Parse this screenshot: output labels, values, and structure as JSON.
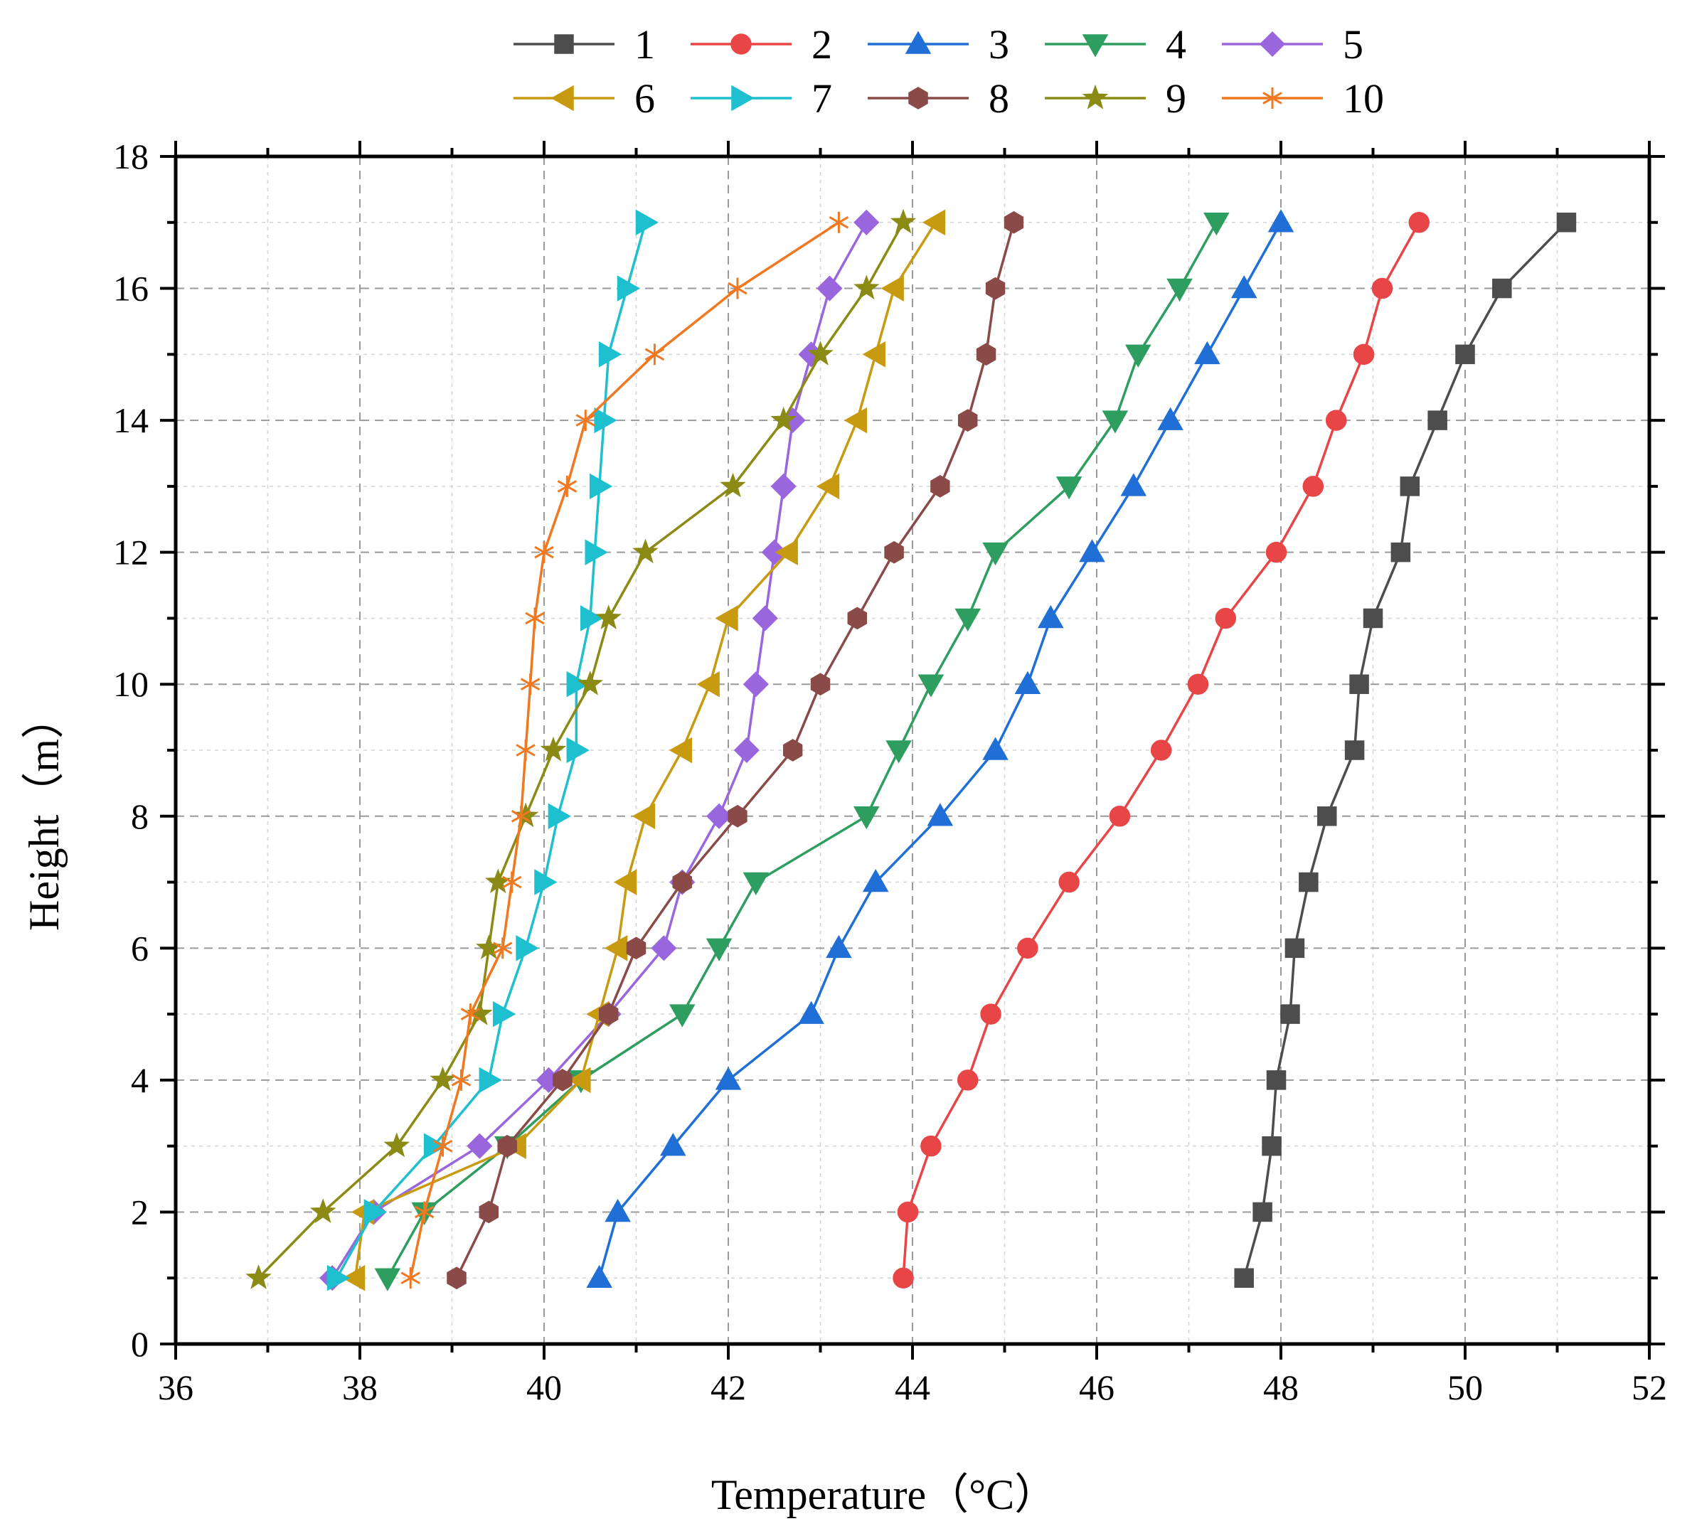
{
  "chart_data": {
    "type": "line",
    "title": "",
    "xlabel": "Temperature（°C）",
    "ylabel": "Height（m）",
    "xlim": [
      36,
      52
    ],
    "ylim": [
      0,
      18
    ],
    "x_ticks": [
      36,
      38,
      40,
      42,
      44,
      46,
      48,
      50,
      52
    ],
    "y_ticks": [
      0,
      2,
      4,
      6,
      8,
      10,
      12,
      14,
      16,
      18
    ],
    "grid": true,
    "legend_position": "top",
    "heights": [
      1,
      2,
      3,
      4,
      5,
      6,
      7,
      8,
      9,
      10,
      11,
      12,
      13,
      14,
      15,
      16,
      17
    ],
    "series": [
      {
        "name": "1",
        "color": "#4d4d4d",
        "marker": "square",
        "values": [
          47.6,
          47.8,
          47.9,
          47.95,
          48.1,
          48.15,
          48.3,
          48.5,
          48.8,
          48.85,
          49.0,
          49.3,
          49.4,
          49.7,
          50.0,
          50.4,
          51.1
        ]
      },
      {
        "name": "2",
        "color": "#e84646",
        "marker": "circle",
        "values": [
          43.9,
          43.95,
          44.2,
          44.6,
          44.85,
          45.25,
          45.7,
          46.25,
          46.7,
          47.1,
          47.4,
          47.95,
          48.35,
          48.6,
          48.9,
          49.1,
          49.5
        ]
      },
      {
        "name": "3",
        "color": "#1f6fd6",
        "marker": "triangle-up",
        "values": [
          40.6,
          40.8,
          41.4,
          42.0,
          42.9,
          43.2,
          43.6,
          44.3,
          44.9,
          45.25,
          45.5,
          45.95,
          46.4,
          46.8,
          47.2,
          47.6,
          48.0
        ]
      },
      {
        "name": "4",
        "color": "#2e9e60",
        "marker": "triangle-down",
        "values": [
          38.3,
          38.7,
          39.6,
          40.4,
          41.5,
          41.9,
          42.3,
          43.5,
          43.85,
          44.2,
          44.6,
          44.9,
          45.7,
          46.2,
          46.45,
          46.9,
          47.3
        ]
      },
      {
        "name": "5",
        "color": "#9966dd",
        "marker": "diamond",
        "values": [
          37.7,
          38.15,
          39.3,
          40.05,
          40.7,
          41.3,
          41.5,
          41.9,
          42.2,
          42.3,
          42.4,
          42.5,
          42.6,
          42.7,
          42.9,
          43.1,
          43.5
        ]
      },
      {
        "name": "6",
        "color": "#c89a10",
        "marker": "triangle-left",
        "values": [
          37.95,
          38.05,
          39.7,
          40.4,
          40.6,
          40.8,
          40.9,
          41.1,
          41.5,
          41.8,
          42.0,
          42.65,
          43.1,
          43.4,
          43.6,
          43.8,
          44.25
        ]
      },
      {
        "name": "7",
        "color": "#1ebfcf",
        "marker": "triangle-right",
        "values": [
          37.75,
          38.15,
          38.8,
          39.4,
          39.55,
          39.8,
          40.0,
          40.15,
          40.35,
          40.35,
          40.5,
          40.55,
          40.6,
          40.65,
          40.7,
          40.9,
          41.1
        ]
      },
      {
        "name": "8",
        "color": "#8a4a48",
        "marker": "hexagon",
        "values": [
          39.05,
          39.4,
          39.6,
          40.2,
          40.7,
          41.0,
          41.5,
          42.1,
          42.7,
          43.0,
          43.4,
          43.8,
          44.3,
          44.6,
          44.8,
          44.9,
          45.1
        ]
      },
      {
        "name": "9",
        "color": "#8a8a14",
        "marker": "star",
        "values": [
          36.9,
          37.6,
          38.4,
          38.9,
          39.3,
          39.4,
          39.5,
          39.8,
          40.1,
          40.5,
          40.7,
          41.1,
          42.05,
          42.6,
          43.0,
          43.5,
          43.9
        ]
      },
      {
        "name": "10",
        "color": "#f07820",
        "marker": "asterisk",
        "values": [
          38.55,
          38.7,
          38.9,
          39.1,
          39.2,
          39.55,
          39.65,
          39.75,
          39.8,
          39.85,
          39.9,
          40.0,
          40.25,
          40.45,
          41.2,
          42.1,
          43.2
        ]
      }
    ]
  }
}
